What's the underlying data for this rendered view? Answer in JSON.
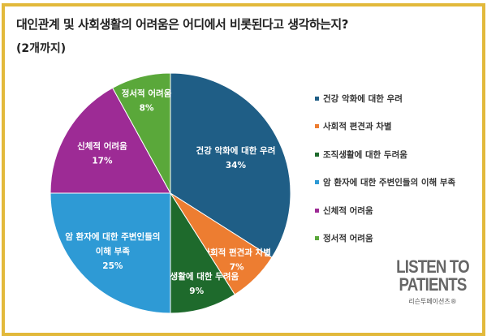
{
  "chart_data": {
    "type": "pie",
    "title": "대인관계 및 사회생활의 어려움은 어디에서 비롯된다고 생각하는지?",
    "subtitle": "(2개까지)",
    "legend_position": "right",
    "slices": [
      {
        "label": "건강 악화에 대한 우려",
        "value": 34,
        "value_label": "34%",
        "color": "#1f5e86"
      },
      {
        "label": "사회적 편견과 차별",
        "value": 7,
        "value_label": "7%",
        "color": "#ed7d31"
      },
      {
        "label": "조직생활에 대한 두려움",
        "value": 9,
        "value_label": "9%",
        "color": "#1e6a2c"
      },
      {
        "label": "암 환자에 대한 주변인들의 이해 부족",
        "value": 25,
        "value_label": "25%",
        "color": "#2e9ad5"
      },
      {
        "label": "신체적 어려움",
        "value": 17,
        "value_label": "17%",
        "color": "#9d2b95"
      },
      {
        "label": "정서적 어려움",
        "value": 8,
        "value_label": "8%",
        "color": "#5aa83a"
      }
    ]
  },
  "logo": {
    "line1": "LISTEN TO",
    "line2": "PATIENTS",
    "line3": "리슨투페이션츠®"
  }
}
